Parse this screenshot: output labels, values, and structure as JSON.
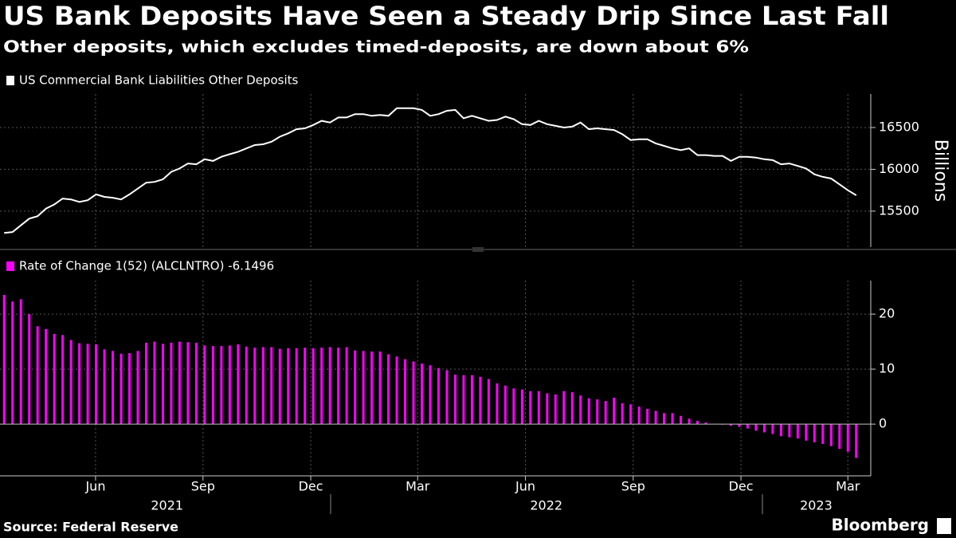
{
  "title": "US Bank Deposits Have Seen a Steady Drip Since Last Fall",
  "subtitle": "Other deposits, which excludes timed-deposits, are down about 6%",
  "source": "Source: Federal Reserve",
  "brand": "Bloomberg",
  "chart_data": [
    {
      "type": "line",
      "categories": [
        null,
        null,
        null,
        null,
        null,
        null,
        null,
        null,
        null,
        null,
        null,
        null,
        null,
        null,
        null,
        null,
        null,
        null,
        null,
        null,
        null,
        null,
        null,
        null,
        null,
        null,
        null,
        null,
        null,
        null,
        null,
        null,
        null,
        null,
        null,
        null,
        null,
        null,
        null,
        null,
        null,
        null,
        null,
        null,
        null,
        null,
        null,
        null,
        null,
        null,
        null,
        null,
        null,
        null,
        null,
        null,
        null,
        null,
        null,
        null,
        null,
        null,
        null,
        null,
        null,
        null,
        null,
        null,
        null,
        null,
        null,
        null,
        null,
        null,
        null,
        null,
        null,
        null,
        null,
        null,
        null,
        null,
        null,
        null,
        null,
        null,
        null,
        null,
        null,
        null,
        null,
        null,
        null,
        null,
        null,
        null,
        null,
        null,
        null,
        null,
        null,
        null,
        null
      ],
      "series": [
        {
          "name": "US Commercial Bank Liabilities Other Deposits",
          "color": "#ffffff",
          "values": [
            15240,
            15250,
            15330,
            15410,
            15440,
            15530,
            15580,
            15650,
            15640,
            15610,
            15630,
            15700,
            15670,
            15660,
            15640,
            15700,
            15770,
            15840,
            15850,
            15880,
            15970,
            16010,
            16070,
            16060,
            16120,
            16100,
            16150,
            16180,
            16210,
            16250,
            16290,
            16300,
            16330,
            16390,
            16430,
            16480,
            16490,
            16530,
            16580,
            16560,
            16620,
            16620,
            16660,
            16660,
            16640,
            16650,
            16640,
            16730,
            16730,
            16730,
            16710,
            16640,
            16660,
            16700,
            16710,
            16610,
            16640,
            16610,
            16580,
            16590,
            16630,
            16600,
            16540,
            16530,
            16580,
            16540,
            16520,
            16500,
            16510,
            16560,
            16480,
            16490,
            16480,
            16470,
            16420,
            16350,
            16360,
            16360,
            16310,
            16280,
            16250,
            16230,
            16250,
            16170,
            16170,
            16160,
            16160,
            16100,
            16150,
            16150,
            16140,
            16120,
            16110,
            16060,
            16070,
            16040,
            16010,
            15940,
            15910,
            15890,
            15820,
            15750,
            15690
          ]
        }
      ],
      "ylim": [
        15070,
        16900
      ],
      "yticks": [
        15500,
        16000,
        16500
      ],
      "y_label": "Billions",
      "grid": true
    },
    {
      "type": "bar",
      "categories": [
        null,
        null,
        null,
        null,
        null,
        null,
        null,
        null,
        null,
        null,
        null,
        null,
        null,
        null,
        null,
        null,
        null,
        null,
        null,
        null,
        null,
        null,
        null,
        null,
        null,
        null,
        null,
        null,
        null,
        null,
        null,
        null,
        null,
        null,
        null,
        null,
        null,
        null,
        null,
        null,
        null,
        null,
        null,
        null,
        null,
        null,
        null,
        null,
        null,
        null,
        null,
        null,
        null,
        null,
        null,
        null,
        null,
        null,
        null,
        null,
        null,
        null,
        null,
        null,
        null,
        null,
        null,
        null,
        null,
        null,
        null,
        null,
        null,
        null,
        null,
        null,
        null,
        null,
        null,
        null,
        null,
        null,
        null,
        null,
        null,
        null,
        null,
        null,
        null,
        null,
        null,
        null,
        null,
        null,
        null,
        null,
        null,
        null,
        null,
        null,
        null,
        null,
        null
      ],
      "series": [
        {
          "name": "Rate of Change 1(52) (ALCLNTRO) -6.1496",
          "color": "#ff00ff",
          "values": [
            23.5,
            22.3,
            22.7,
            20.0,
            17.8,
            17.3,
            16.4,
            16.2,
            15.3,
            14.7,
            14.6,
            14.5,
            13.6,
            13.3,
            12.8,
            12.9,
            13.3,
            14.8,
            15.0,
            14.6,
            14.8,
            15.0,
            14.9,
            14.8,
            14.3,
            14.2,
            14.2,
            14.3,
            14.5,
            14.1,
            13.9,
            14.0,
            14.0,
            13.7,
            13.8,
            13.8,
            13.9,
            13.8,
            13.9,
            14.0,
            13.9,
            14.0,
            13.4,
            13.3,
            13.2,
            13.2,
            12.7,
            12.3,
            11.8,
            11.4,
            11.0,
            10.7,
            10.2,
            9.8,
            9.0,
            8.9,
            8.9,
            8.6,
            8.2,
            7.4,
            7.0,
            6.5,
            6.3,
            6.0,
            6.0,
            5.6,
            5.4,
            6.0,
            5.8,
            5.2,
            4.7,
            4.5,
            4.2,
            4.8,
            3.8,
            3.6,
            3.2,
            2.8,
            2.4,
            2.0,
            2.0,
            1.5,
            1.0,
            0.6,
            0.3,
            0,
            -0.1,
            -0.3,
            -0.5,
            -0.8,
            -1.2,
            -1.5,
            -1.8,
            -2.2,
            -2.4,
            -2.6,
            -3.0,
            -3.3,
            -3.6,
            -4.0,
            -4.5,
            -5.0,
            -6.1496
          ]
        }
      ],
      "ylim": [
        -9.4,
        26.1
      ],
      "yticks": [
        0,
        10,
        20
      ],
      "xticks": [
        {
          "value": 10.94,
          "label": "Jun"
        },
        {
          "value": 23.8,
          "label": "Sep"
        },
        {
          "value": 36.7,
          "label": "Dec"
        },
        {
          "value": 49.5,
          "label": "Mar"
        },
        {
          "value": 62.4,
          "label": "Jun"
        },
        {
          "value": 75.3,
          "label": "Sep"
        },
        {
          "value": 88.2,
          "label": "Dec"
        },
        {
          "value": 101,
          "label": "Mar"
        }
      ],
      "year_ticks": [
        {
          "value": 19.5,
          "label": "2021"
        },
        {
          "value": 64.9,
          "label": "2022"
        },
        {
          "value": 97.2,
          "label": "2023"
        }
      ],
      "grid": true
    }
  ]
}
